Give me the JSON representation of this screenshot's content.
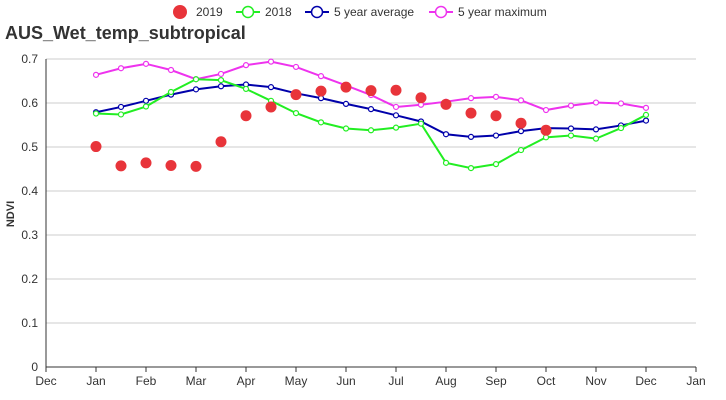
{
  "chart_data": {
    "type": "line",
    "title": "AUS_Wet_temp_subtropical",
    "xlabel": "",
    "ylabel": "NDVI",
    "ylim": [
      0,
      0.7
    ],
    "yticks": [
      "0",
      "0.1",
      "0.2",
      "0.3",
      "0.4",
      "0.5",
      "0.6",
      "0.7"
    ],
    "xlim": [
      0,
      13
    ],
    "xticks": [
      "Dec",
      "Jan",
      "Feb",
      "Mar",
      "Apr",
      "May",
      "Jun",
      "Jul",
      "Aug",
      "Sep",
      "Oct",
      "Nov",
      "Dec",
      "Jan"
    ],
    "grid": true,
    "legend_position": "top-center",
    "x": [
      1,
      1.5,
      2,
      2.5,
      3,
      3.5,
      4,
      4.5,
      5,
      5.5,
      6,
      6.5,
      7,
      7.5,
      8,
      8.5,
      9,
      9.5,
      10,
      10.5,
      11,
      11.5,
      12
    ],
    "series": [
      {
        "name": "2019",
        "style": "scatter",
        "color": "#e8343a",
        "values": [
          0.501,
          0.457,
          0.464,
          0.458,
          0.456,
          0.512,
          0.571,
          0.591,
          0.619,
          0.627,
          0.636,
          0.628,
          0.629,
          0.612,
          0.597,
          0.577,
          0.571,
          0.554,
          0.538,
          null,
          null,
          null,
          null
        ]
      },
      {
        "name": "2018",
        "style": "line",
        "color": "#22ee22",
        "values": [
          0.576,
          0.574,
          0.592,
          0.625,
          0.654,
          0.652,
          0.632,
          0.605,
          0.577,
          0.556,
          0.542,
          0.538,
          0.544,
          0.553,
          0.464,
          0.452,
          0.461,
          0.493,
          0.522,
          0.526,
          0.519,
          0.543,
          0.573
        ]
      },
      {
        "name": "5 year average",
        "style": "line",
        "color": "#0000aa",
        "values": [
          0.579,
          0.591,
          0.605,
          0.619,
          0.631,
          0.638,
          0.642,
          0.636,
          0.622,
          0.611,
          0.598,
          0.586,
          0.572,
          0.558,
          0.529,
          0.523,
          0.526,
          0.536,
          0.543,
          0.542,
          0.54,
          0.549,
          0.56
        ]
      },
      {
        "name": "5 year maximum",
        "style": "line",
        "color": "#ee33ee",
        "values": [
          0.664,
          0.679,
          0.689,
          0.675,
          0.654,
          0.666,
          0.686,
          0.694,
          0.682,
          0.661,
          0.64,
          0.618,
          0.591,
          0.596,
          0.603,
          0.611,
          0.614,
          0.606,
          0.584,
          0.594,
          0.601,
          0.599,
          0.589
        ]
      }
    ]
  }
}
